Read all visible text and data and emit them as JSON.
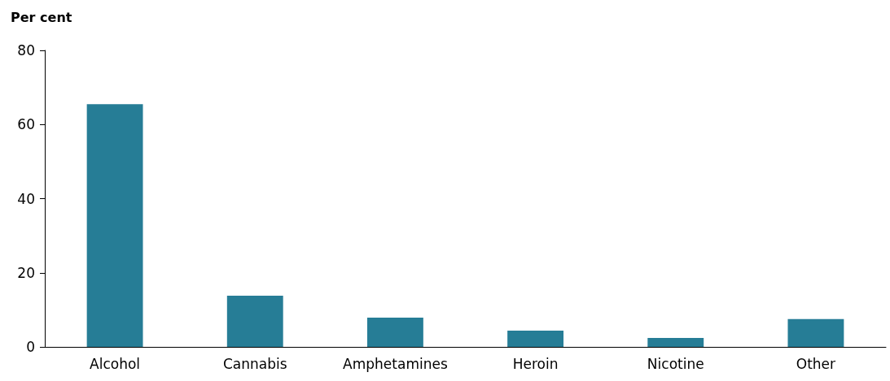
{
  "chart_data": {
    "type": "bar",
    "ylabel": "Per cent",
    "categories": [
      "Alcohol",
      "Cannabis",
      "Amphetamines",
      "Heroin",
      "Nicotine",
      "Other"
    ],
    "values": [
      65.5,
      13.8,
      7.9,
      4.4,
      2.4,
      7.5
    ],
    "color": "#267d96",
    "ylim": [
      0,
      80
    ],
    "yticks": [
      0,
      20,
      40,
      60,
      80
    ]
  }
}
